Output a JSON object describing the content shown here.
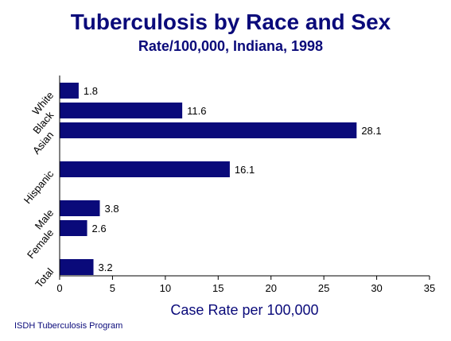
{
  "chart_data": {
    "type": "bar",
    "orientation": "horizontal",
    "title": "Tuberculosis by Race and Sex",
    "subtitle": "Rate/100,000, Indiana, 1998",
    "xlabel": "Case Rate per 100,000",
    "ylabel": "",
    "xlim": [
      0,
      35
    ],
    "xticks": [
      0,
      5,
      10,
      15,
      20,
      25,
      30,
      35
    ],
    "categories": [
      "White",
      "Black",
      "Asian",
      "Hispanic",
      "Male",
      "Female",
      "Total"
    ],
    "values": [
      1.8,
      11.6,
      28.1,
      16.1,
      3.8,
      2.6,
      3.2
    ],
    "data_labels": [
      "1.8",
      "11.6",
      "28.1",
      "16.1",
      "3.8",
      "2.6",
      "3.2"
    ],
    "bar_color": "#0a0a7a",
    "grid": false,
    "legend": "none"
  },
  "footer": "ISDH Tuberculosis Program",
  "colors": {
    "text": "#0a0a7a",
    "bar": "#0a0a7a",
    "axis": "#000000"
  }
}
